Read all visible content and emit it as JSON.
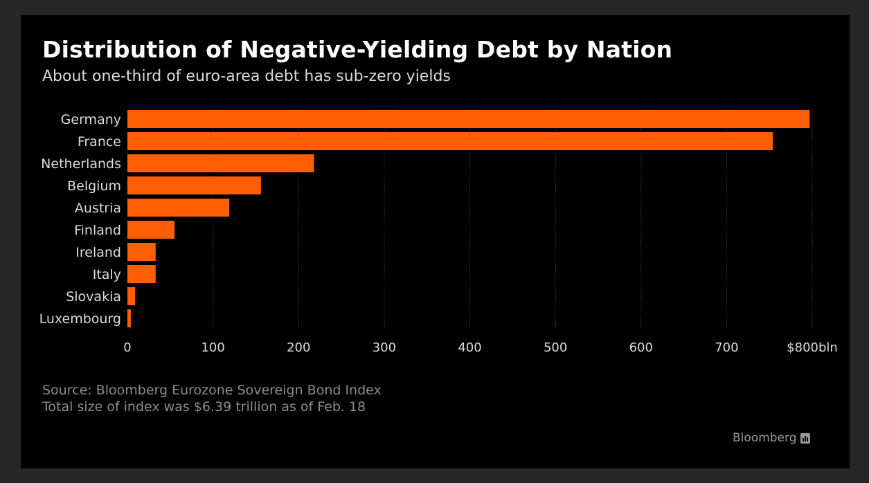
{
  "title": "Distribution of Negative-Yielding Debt by Nation",
  "subtitle": "About one-third of euro-area debt has sub-zero yields",
  "source": "Source: Bloomberg Eurozone Sovereign Bond Index",
  "note": "Total size of index was $6.39 trillion as of Feb. 18",
  "brand": "Bloomberg",
  "colors": {
    "bar": "#ff5f00",
    "background": "#000000",
    "frame": "#262626",
    "grid": "#4a4a4a"
  },
  "chart_data": {
    "type": "bar",
    "orientation": "horizontal",
    "title": "Distribution of Negative-Yielding Debt by Nation",
    "subtitle": "About one-third of euro-area debt has sub-zero yields",
    "categories": [
      "Germany",
      "France",
      "Netherlands",
      "Belgium",
      "Austria",
      "Finland",
      "Ireland",
      "Italy",
      "Slovakia",
      "Luxembourg"
    ],
    "values": [
      797,
      754,
      218,
      156,
      119,
      55,
      33,
      33,
      9,
      4
    ],
    "units": "bln USD",
    "xlim": [
      0,
      800
    ],
    "xticks": [
      0,
      100,
      200,
      300,
      400,
      500,
      600,
      700,
      800
    ],
    "xtick_labels": [
      "0",
      "100",
      "200",
      "300",
      "400",
      "500",
      "600",
      "700",
      "$800bln"
    ],
    "grid": true,
    "legend": "none"
  }
}
